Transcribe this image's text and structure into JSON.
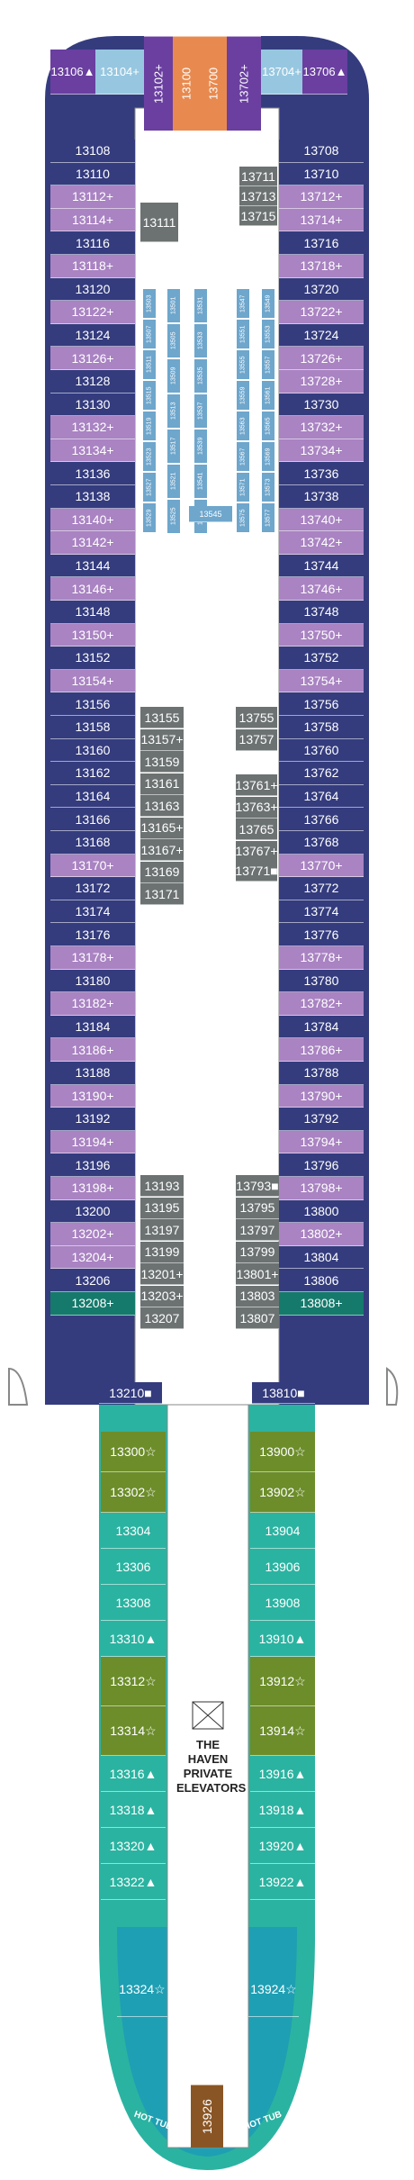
{
  "colors": {
    "navy": "#343c7e",
    "purple": "#a983c2",
    "darkpurple": "#6a3fa0",
    "lightblue": "#97c7e0",
    "orange": "#e88a4f",
    "gray": "#6c7272",
    "olive": "#6c8d2a",
    "teal": "#2bb3a1",
    "dteal": "#157a6c",
    "brown": "#8a5524",
    "hull": "#2f6b78"
  },
  "forward": {
    "top_row": [
      "13106",
      "13104",
      "13102",
      "13100",
      "13700",
      "13702",
      "13704",
      "13706"
    ],
    "top_row_suffix": [
      "▲",
      "+",
      "+",
      "",
      "",
      "+",
      "+",
      "▲"
    ]
  },
  "port_column": [
    {
      "n": "13108",
      "s": "",
      "c": "navy"
    },
    {
      "n": "13110",
      "s": "",
      "c": "navy"
    },
    {
      "n": "13112",
      "s": "+",
      "c": "purple"
    },
    {
      "n": "13114",
      "s": "+",
      "c": "purple"
    },
    {
      "n": "13116",
      "s": "",
      "c": "navy"
    },
    {
      "n": "13118",
      "s": "+",
      "c": "purple"
    },
    {
      "n": "13120",
      "s": "",
      "c": "navy"
    },
    {
      "n": "13122",
      "s": "+",
      "c": "purple"
    },
    {
      "n": "13124",
      "s": "",
      "c": "navy"
    },
    {
      "n": "13126",
      "s": "+",
      "c": "purple"
    },
    {
      "n": "13128",
      "s": "",
      "c": "navy"
    },
    {
      "n": "13130",
      "s": "",
      "c": "navy"
    },
    {
      "n": "13132",
      "s": "+",
      "c": "purple"
    },
    {
      "n": "13134",
      "s": "+",
      "c": "purple"
    },
    {
      "n": "13136",
      "s": "",
      "c": "navy"
    },
    {
      "n": "13138",
      "s": "",
      "c": "navy"
    },
    {
      "n": "13140",
      "s": "+",
      "c": "purple"
    },
    {
      "n": "13142",
      "s": "+",
      "c": "purple"
    },
    {
      "n": "13144",
      "s": "",
      "c": "navy"
    },
    {
      "n": "13146",
      "s": "+",
      "c": "purple"
    },
    {
      "n": "13148",
      "s": "",
      "c": "navy"
    },
    {
      "n": "13150",
      "s": "+",
      "c": "purple"
    },
    {
      "n": "13152",
      "s": "",
      "c": "navy"
    },
    {
      "n": "13154",
      "s": "+",
      "c": "purple"
    },
    {
      "n": "13156",
      "s": "",
      "c": "navy"
    },
    {
      "n": "13158",
      "s": "",
      "c": "navy"
    },
    {
      "n": "13160",
      "s": "",
      "c": "navy"
    },
    {
      "n": "13162",
      "s": "",
      "c": "navy"
    },
    {
      "n": "13164",
      "s": "",
      "c": "navy"
    },
    {
      "n": "13166",
      "s": "",
      "c": "navy"
    },
    {
      "n": "13168",
      "s": "",
      "c": "navy"
    },
    {
      "n": "13170",
      "s": "+",
      "c": "purple"
    },
    {
      "n": "13172",
      "s": "",
      "c": "navy"
    },
    {
      "n": "13174",
      "s": "",
      "c": "navy"
    },
    {
      "n": "13176",
      "s": "",
      "c": "navy"
    },
    {
      "n": "13178",
      "s": "+",
      "c": "purple"
    },
    {
      "n": "13180",
      "s": "",
      "c": "navy"
    },
    {
      "n": "13182",
      "s": "+",
      "c": "purple"
    },
    {
      "n": "13184",
      "s": "",
      "c": "navy"
    },
    {
      "n": "13186",
      "s": "+",
      "c": "purple"
    },
    {
      "n": "13188",
      "s": "",
      "c": "navy"
    },
    {
      "n": "13190",
      "s": "+",
      "c": "purple"
    },
    {
      "n": "13192",
      "s": "",
      "c": "navy"
    },
    {
      "n": "13194",
      "s": "+",
      "c": "purple"
    },
    {
      "n": "13196",
      "s": "",
      "c": "navy"
    },
    {
      "n": "13198",
      "s": "+",
      "c": "purple"
    },
    {
      "n": "13200",
      "s": "",
      "c": "navy"
    },
    {
      "n": "13202",
      "s": "+",
      "c": "purple"
    },
    {
      "n": "13204",
      "s": "+",
      "c": "purple"
    },
    {
      "n": "13206",
      "s": "",
      "c": "navy"
    },
    {
      "n": "13208",
      "s": "+",
      "c": "dteal"
    }
  ],
  "starboard_column": [
    {
      "n": "13708",
      "s": "",
      "c": "navy"
    },
    {
      "n": "13710",
      "s": "",
      "c": "navy"
    },
    {
      "n": "13712",
      "s": "+",
      "c": "purple"
    },
    {
      "n": "13714",
      "s": "+",
      "c": "purple"
    },
    {
      "n": "13716",
      "s": "",
      "c": "navy"
    },
    {
      "n": "13718",
      "s": "+",
      "c": "purple"
    },
    {
      "n": "13720",
      "s": "",
      "c": "navy"
    },
    {
      "n": "13722",
      "s": "+",
      "c": "purple"
    },
    {
      "n": "13724",
      "s": "",
      "c": "navy"
    },
    {
      "n": "13726",
      "s": "+",
      "c": "purple"
    },
    {
      "n": "13728",
      "s": "+",
      "c": "purple"
    },
    {
      "n": "13730",
      "s": "",
      "c": "navy"
    },
    {
      "n": "13732",
      "s": "+",
      "c": "purple"
    },
    {
      "n": "13734",
      "s": "+",
      "c": "purple"
    },
    {
      "n": "13736",
      "s": "",
      "c": "navy"
    },
    {
      "n": "13738",
      "s": "",
      "c": "navy"
    },
    {
      "n": "13740",
      "s": "+",
      "c": "purple"
    },
    {
      "n": "13742",
      "s": "+",
      "c": "purple"
    },
    {
      "n": "13744",
      "s": "",
      "c": "navy"
    },
    {
      "n": "13746",
      "s": "+",
      "c": "purple"
    },
    {
      "n": "13748",
      "s": "",
      "c": "navy"
    },
    {
      "n": "13750",
      "s": "+",
      "c": "purple"
    },
    {
      "n": "13752",
      "s": "",
      "c": "navy"
    },
    {
      "n": "13754",
      "s": "+",
      "c": "purple"
    },
    {
      "n": "13756",
      "s": "",
      "c": "navy"
    },
    {
      "n": "13758",
      "s": "",
      "c": "navy"
    },
    {
      "n": "13760",
      "s": "",
      "c": "navy"
    },
    {
      "n": "13762",
      "s": "",
      "c": "navy"
    },
    {
      "n": "13764",
      "s": "",
      "c": "navy"
    },
    {
      "n": "13766",
      "s": "",
      "c": "navy"
    },
    {
      "n": "13768",
      "s": "",
      "c": "navy"
    },
    {
      "n": "13770",
      "s": "+",
      "c": "purple"
    },
    {
      "n": "13772",
      "s": "",
      "c": "navy"
    },
    {
      "n": "13774",
      "s": "",
      "c": "navy"
    },
    {
      "n": "13776",
      "s": "",
      "c": "navy"
    },
    {
      "n": "13778",
      "s": "+",
      "c": "purple"
    },
    {
      "n": "13780",
      "s": "",
      "c": "navy"
    },
    {
      "n": "13782",
      "s": "+",
      "c": "purple"
    },
    {
      "n": "13784",
      "s": "",
      "c": "navy"
    },
    {
      "n": "13786",
      "s": "+",
      "c": "purple"
    },
    {
      "n": "13788",
      "s": "",
      "c": "navy"
    },
    {
      "n": "13790",
      "s": "+",
      "c": "purple"
    },
    {
      "n": "13792",
      "s": "",
      "c": "navy"
    },
    {
      "n": "13794",
      "s": "+",
      "c": "purple"
    },
    {
      "n": "13796",
      "s": "",
      "c": "navy"
    },
    {
      "n": "13798",
      "s": "+",
      "c": "purple"
    },
    {
      "n": "13800",
      "s": "",
      "c": "navy"
    },
    {
      "n": "13802",
      "s": "+",
      "c": "purple"
    },
    {
      "n": "13804",
      "s": "",
      "c": "navy"
    },
    {
      "n": "13806",
      "s": "",
      "c": "navy"
    },
    {
      "n": "13808",
      "s": "+",
      "c": "dteal"
    }
  ],
  "studio_top": {
    "left": [
      "13111"
    ],
    "right": [
      "13711",
      "13713",
      "13715"
    ],
    "block_left": [
      "13503",
      "13507",
      "13511",
      "13515",
      "13519",
      "13523",
      "13527",
      "13529"
    ],
    "block_left2": [
      "13501",
      "13505",
      "13509",
      "13513",
      "13517",
      "13521",
      "13525"
    ],
    "block_left3": [
      "13531",
      "13533",
      "13535",
      "13537",
      "13539",
      "13541",
      "13543"
    ],
    "block_right": [
      "13547",
      "13551",
      "13555",
      "13559",
      "13563",
      "13567",
      "13571",
      "13575"
    ],
    "block_right2": [
      "13549",
      "13553",
      "13557",
      "13561",
      "13565",
      "13569",
      "13573",
      "13577"
    ],
    "bottom": [
      "13545"
    ]
  },
  "inner_left": [
    {
      "n": "13155",
      "s": ""
    },
    {
      "n": "13157",
      "s": "+"
    },
    {
      "n": "13159",
      "s": ""
    },
    {
      "n": "13161",
      "s": ""
    },
    {
      "n": "13163",
      "s": ""
    },
    {
      "n": "13165",
      "s": "+"
    },
    {
      "n": "13167",
      "s": "+"
    },
    {
      "n": "13169",
      "s": ""
    },
    {
      "n": "13171",
      "s": ""
    }
  ],
  "inner_right": [
    {
      "n": "13755",
      "s": ""
    },
    {
      "n": "13757",
      "s": ""
    },
    {
      "n": "13761",
      "s": "+"
    },
    {
      "n": "13763",
      "s": "+"
    },
    {
      "n": "13765",
      "s": ""
    },
    {
      "n": "13767",
      "s": "+"
    },
    {
      "n": "13771",
      "s": "■"
    }
  ],
  "inner_left_lower": [
    {
      "n": "13193",
      "s": ""
    },
    {
      "n": "13195",
      "s": ""
    },
    {
      "n": "13197",
      "s": ""
    },
    {
      "n": "13199",
      "s": ""
    },
    {
      "n": "13201",
      "s": "+"
    },
    {
      "n": "13203",
      "s": "+"
    },
    {
      "n": "13207",
      "s": ""
    }
  ],
  "inner_right_lower": [
    {
      "n": "13793",
      "s": "■"
    },
    {
      "n": "13795",
      "s": ""
    },
    {
      "n": "13797",
      "s": ""
    },
    {
      "n": "13799",
      "s": ""
    },
    {
      "n": "13801",
      "s": "+"
    },
    {
      "n": "13803",
      "s": ""
    },
    {
      "n": "13807",
      "s": ""
    }
  ],
  "accessible": [
    "13210■",
    "13810■"
  ],
  "haven_left": [
    {
      "n": "13300",
      "s": "☆",
      "c": "olive"
    },
    {
      "n": "13302",
      "s": "☆",
      "c": "olive"
    },
    {
      "n": "13304",
      "s": "",
      "c": "teal"
    },
    {
      "n": "13306",
      "s": "",
      "c": "teal"
    },
    {
      "n": "13308",
      "s": "",
      "c": "teal"
    },
    {
      "n": "13310",
      "s": "▲",
      "c": "teal"
    },
    {
      "n": "13312",
      "s": "☆",
      "c": "olive"
    },
    {
      "n": "13314",
      "s": "☆",
      "c": "olive"
    },
    {
      "n": "13316",
      "s": "▲",
      "c": "teal"
    },
    {
      "n": "13318",
      "s": "▲",
      "c": "teal"
    },
    {
      "n": "13320",
      "s": "▲",
      "c": "teal"
    },
    {
      "n": "13322",
      "s": "▲",
      "c": "teal"
    }
  ],
  "haven_right": [
    {
      "n": "13900",
      "s": "☆",
      "c": "olive"
    },
    {
      "n": "13902",
      "s": "☆",
      "c": "olive"
    },
    {
      "n": "13904",
      "s": "",
      "c": "teal"
    },
    {
      "n": "13906",
      "s": "",
      "c": "teal"
    },
    {
      "n": "13908",
      "s": "",
      "c": "teal"
    },
    {
      "n": "13910",
      "s": "▲",
      "c": "teal"
    },
    {
      "n": "13912",
      "s": "☆",
      "c": "olive"
    },
    {
      "n": "13914",
      "s": "☆",
      "c": "olive"
    },
    {
      "n": "13916",
      "s": "▲",
      "c": "teal"
    },
    {
      "n": "13918",
      "s": "▲",
      "c": "teal"
    },
    {
      "n": "13920",
      "s": "▲",
      "c": "teal"
    },
    {
      "n": "13922",
      "s": "▲",
      "c": "teal"
    }
  ],
  "aft": {
    "left": "13324☆",
    "right": "13924☆",
    "center": "13926"
  },
  "labels": {
    "haven_elevators": "THE HAVEN PRIVATE ELEVATORS",
    "hot_tub_left": "HOT TUB",
    "hot_tub_right": "HOT TUB"
  }
}
